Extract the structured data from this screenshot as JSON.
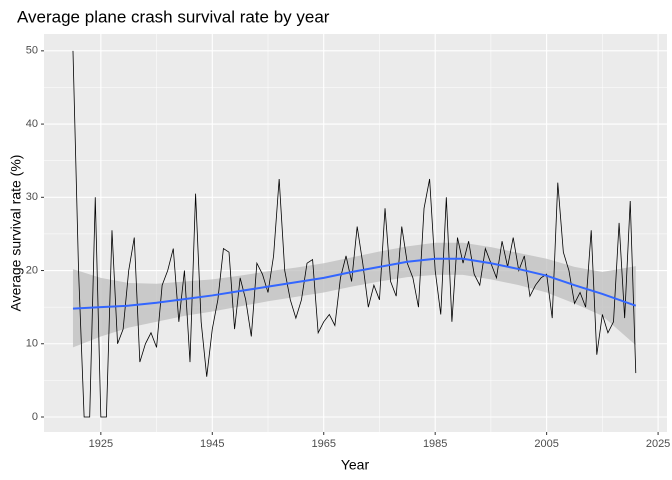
{
  "chart_data": {
    "type": "line",
    "title": "Average plane crash survival rate by year",
    "x_label": "Year",
    "y_label": "Average survival rate (%)",
    "x": [
      1920,
      1921,
      1922,
      1923,
      1924,
      1925,
      1926,
      1927,
      1928,
      1929,
      1930,
      1931,
      1932,
      1933,
      1934,
      1935,
      1936,
      1937,
      1938,
      1939,
      1940,
      1941,
      1942,
      1943,
      1944,
      1945,
      1946,
      1947,
      1948,
      1949,
      1950,
      1951,
      1952,
      1953,
      1954,
      1955,
      1956,
      1957,
      1958,
      1959,
      1960,
      1961,
      1962,
      1963,
      1964,
      1965,
      1966,
      1967,
      1968,
      1969,
      1970,
      1971,
      1972,
      1973,
      1974,
      1975,
      1976,
      1977,
      1978,
      1979,
      1980,
      1981,
      1982,
      1983,
      1984,
      1985,
      1986,
      1987,
      1988,
      1989,
      1990,
      1991,
      1992,
      1993,
      1994,
      1995,
      1996,
      1997,
      1998,
      1999,
      2000,
      2001,
      2002,
      2003,
      2004,
      2005,
      2006,
      2007,
      2008,
      2009,
      2010,
      2011,
      2012,
      2013,
      2014,
      2015,
      2016,
      2017,
      2018,
      2019,
      2020,
      2021
    ],
    "series": [
      {
        "color": "#000000",
        "values": [
          50,
          20,
          0,
          0,
          30,
          0,
          0,
          25.5,
          10,
          12,
          20,
          24.5,
          7.5,
          10,
          11.5,
          9.5,
          18,
          20,
          23,
          13,
          20,
          7.5,
          30.5,
          13,
          5.5,
          12,
          16,
          23,
          22.5,
          12,
          19,
          16,
          11,
          21,
          19.5,
          17,
          22,
          32.5,
          20,
          16,
          13.5,
          16,
          21,
          21.5,
          11.5,
          13,
          14,
          12.5,
          19,
          22,
          18.5,
          26,
          21,
          15,
          18,
          16,
          28.5,
          18.5,
          16.5,
          26,
          21,
          19,
          15,
          28.5,
          32.5,
          20,
          14,
          30,
          13,
          24.5,
          21,
          24,
          19.5,
          18,
          23,
          21,
          19,
          24,
          20.5,
          24.5,
          20,
          22,
          16.5,
          18,
          19,
          19.5,
          13.5,
          32,
          22.5,
          20,
          15.5,
          17,
          15,
          25.5,
          8.5,
          14,
          11.5,
          13,
          26.5,
          13.5,
          29.5,
          6
        ]
      }
    ],
    "smooth": {
      "color": "#3366ff",
      "band_color": "#bebebe",
      "x": [
        1920,
        1925,
        1930,
        1935,
        1940,
        1945,
        1950,
        1955,
        1960,
        1965,
        1970,
        1975,
        1980,
        1985,
        1990,
        1995,
        2000,
        2005,
        2010,
        2015,
        2021
      ],
      "values": [
        14.8,
        15.0,
        15.2,
        15.6,
        16.1,
        16.6,
        17.2,
        17.8,
        18.4,
        19.0,
        19.8,
        20.5,
        21.2,
        21.6,
        21.6,
        21.0,
        20.2,
        19.3,
        18.0,
        16.8,
        15.2
      ],
      "lower": [
        9.5,
        11,
        12.2,
        13,
        13.8,
        14.4,
        15.1,
        15.8,
        16.4,
        17,
        17.8,
        18.5,
        19.1,
        19.4,
        19.4,
        18.8,
        18,
        17,
        15.5,
        13.8,
        9.8
      ],
      "upper": [
        20.2,
        19,
        18.3,
        18.2,
        18.5,
        18.8,
        19.3,
        19.9,
        20.4,
        21,
        21.8,
        22.6,
        23.3,
        23.8,
        23.8,
        23.2,
        22.4,
        21.6,
        20.5,
        19.8,
        20.6
      ]
    },
    "xlim": [
      1914.8,
      2026.6
    ],
    "ylim": [
      -2.05,
      52.3
    ],
    "xticks": [
      1925,
      1945,
      1965,
      1985,
      2005,
      2025
    ],
    "yticks": [
      0,
      10,
      20,
      30,
      40,
      50
    ],
    "grid": true
  }
}
